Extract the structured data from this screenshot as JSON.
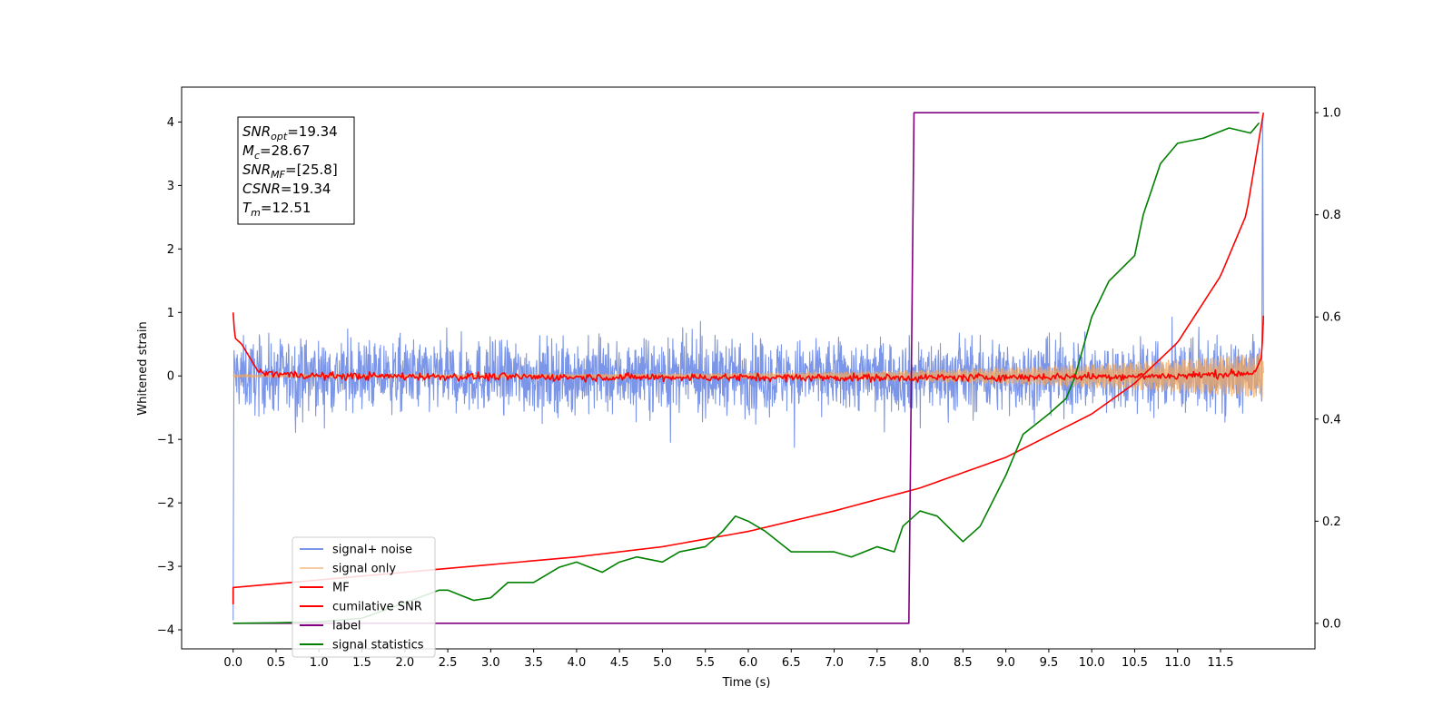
{
  "chart_data": {
    "type": "line",
    "xlabel": "Time (s)",
    "ylabel": "Whitened strain",
    "xlim": [
      -0.6,
      12.6
    ],
    "ylim": [
      -4.3,
      4.55
    ],
    "y2lim": [
      -0.05,
      1.05
    ],
    "x_ticks": [
      "0.0",
      "0.5",
      "1.0",
      "1.5",
      "2.0",
      "2.5",
      "3.0",
      "3.5",
      "4.0",
      "4.5",
      "5.0",
      "5.5",
      "6.0",
      "6.5",
      "7.0",
      "7.5",
      "8.0",
      "8.5",
      "9.0",
      "9.5",
      "10.0",
      "10.5",
      "11.0",
      "11.5"
    ],
    "y_ticks": [
      "4",
      "3",
      "2",
      "1",
      "0",
      "−1",
      "−2",
      "−3",
      "−4"
    ],
    "y2_ticks": [
      "1.0",
      "0.8",
      "0.6",
      "0.4",
      "0.2",
      "0.0"
    ],
    "annotation": [
      {
        "symbol": "SNR",
        "sub": "opt",
        "value": "=19.34"
      },
      {
        "symbol": "M",
        "sub": "c",
        "value": "=28.67"
      },
      {
        "symbol": "SNR",
        "sub": "MF",
        "value": "=[25.8]"
      },
      {
        "symbol": "CSNR",
        "sub": "",
        "value": "=19.34"
      },
      {
        "symbol": "T",
        "sub": "m",
        "value": "=12.51"
      }
    ],
    "legend_position": "lower-left",
    "series": [
      {
        "name": "signal+ noise",
        "color": "#7b95e8",
        "axis": "left",
        "noise_amplitude": 0.45,
        "x_range": [
          0.0,
          12.0
        ],
        "end_spike": 4.1
      },
      {
        "name": "signal only",
        "color": "#f0a860",
        "axis": "left",
        "chirp_amplitude_start": 0.02,
        "chirp_amplitude_end": 0.35,
        "x_range": [
          0.0,
          12.0
        ]
      },
      {
        "name": "MF",
        "color": "#ff0000",
        "axis": "left",
        "x": [
          0.0,
          0.02,
          0.1,
          0.3,
          1.0,
          4.0,
          8.0,
          11.0,
          11.9,
          11.98,
          12.0
        ],
        "y": [
          1.0,
          0.6,
          0.5,
          0.05,
          0.0,
          -0.02,
          -0.03,
          0.0,
          0.05,
          0.3,
          0.95
        ]
      },
      {
        "name": "cumilative SNR",
        "color": "#ff0000",
        "axis": "right",
        "x": [
          0.0,
          1.0,
          2.0,
          3.0,
          4.0,
          5.0,
          6.0,
          7.0,
          8.0,
          9.0,
          10.0,
          10.5,
          11.0,
          11.5,
          11.8,
          12.0
        ],
        "y": [
          0.07,
          0.085,
          0.1,
          0.115,
          0.13,
          0.15,
          0.18,
          0.22,
          0.265,
          0.325,
          0.41,
          0.47,
          0.55,
          0.68,
          0.8,
          1.0
        ]
      },
      {
        "name": "label",
        "color": "#800080",
        "axis": "right",
        "x": [
          0.0,
          7.87,
          7.93,
          11.95
        ],
        "y": [
          0.0,
          0.0,
          1.0,
          1.0
        ]
      },
      {
        "name": "signal statistics",
        "color": "#008000",
        "axis": "right",
        "x": [
          0.0,
          0.5,
          1.0,
          1.5,
          2.0,
          2.4,
          2.5,
          2.8,
          3.0,
          3.2,
          3.5,
          3.8,
          4.0,
          4.3,
          4.5,
          4.7,
          5.0,
          5.2,
          5.5,
          5.7,
          5.85,
          6.0,
          6.2,
          6.5,
          6.8,
          7.0,
          7.2,
          7.5,
          7.7,
          7.8,
          8.0,
          8.2,
          8.5,
          8.7,
          9.0,
          9.2,
          9.5,
          9.7,
          9.8,
          10.0,
          10.2,
          10.5,
          10.6,
          10.8,
          11.0,
          11.3,
          11.6,
          11.85,
          11.95
        ],
        "y": [
          0.0,
          0.001,
          0.003,
          0.01,
          0.04,
          0.065,
          0.065,
          0.045,
          0.05,
          0.08,
          0.08,
          0.11,
          0.12,
          0.1,
          0.12,
          0.13,
          0.12,
          0.14,
          0.15,
          0.18,
          0.21,
          0.2,
          0.18,
          0.14,
          0.14,
          0.14,
          0.13,
          0.15,
          0.14,
          0.19,
          0.22,
          0.21,
          0.16,
          0.19,
          0.29,
          0.37,
          0.41,
          0.44,
          0.48,
          0.6,
          0.67,
          0.72,
          0.8,
          0.9,
          0.94,
          0.95,
          0.97,
          0.96,
          0.98
        ]
      }
    ]
  }
}
